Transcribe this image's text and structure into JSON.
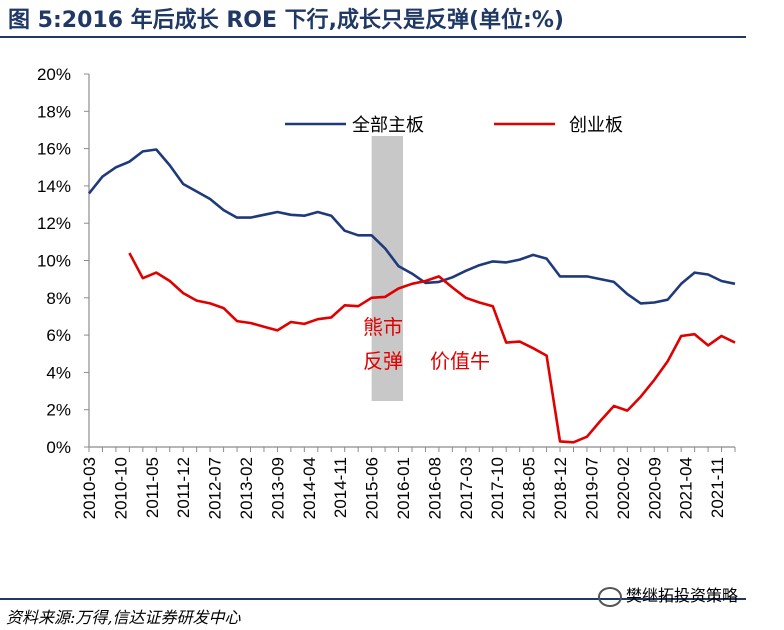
{
  "header": {
    "title": "图 5:2016 年后成长 ROE 下行,成长只是反弹(单位:%)"
  },
  "footer": {
    "source": "资料来源:万得,信达证券研发中心",
    "watermark": "樊继拓投资策略"
  },
  "chart_data": {
    "type": "line",
    "title": "图 5:2016 年后成长 ROE 下行,成长只是反弹(单位:%)",
    "xlabel": "",
    "ylabel": "",
    "ylim": [
      0,
      20
    ],
    "yticks": [
      "0%",
      "2%",
      "4%",
      "6%",
      "8%",
      "10%",
      "12%",
      "14%",
      "16%",
      "18%",
      "20%"
    ],
    "xticks": [
      "2010-03",
      "2010-10",
      "2011-05",
      "2011-12",
      "2012-07",
      "2013-02",
      "2013-09",
      "2014-04",
      "2014-11",
      "2015-06",
      "2016-01",
      "2016-08",
      "2017-03",
      "2017-10",
      "2018-05",
      "2018-12",
      "2019-07",
      "2020-02",
      "2020-09",
      "2021-04",
      "2021-11"
    ],
    "x": [
      "2010-03",
      "2010-06",
      "2010-09",
      "2010-12",
      "2011-03",
      "2011-06",
      "2011-09",
      "2011-12",
      "2012-03",
      "2012-06",
      "2012-09",
      "2012-12",
      "2013-03",
      "2013-06",
      "2013-09",
      "2013-12",
      "2014-03",
      "2014-06",
      "2014-09",
      "2014-12",
      "2015-03",
      "2015-06",
      "2015-09",
      "2015-12",
      "2016-03",
      "2016-06",
      "2016-09",
      "2016-12",
      "2017-03",
      "2017-06",
      "2017-09",
      "2017-12",
      "2018-03",
      "2018-06",
      "2018-09",
      "2018-12",
      "2019-03",
      "2019-06",
      "2019-09",
      "2019-12",
      "2020-03",
      "2020-06",
      "2020-09",
      "2020-12",
      "2021-03",
      "2021-06",
      "2021-09",
      "2021-12",
      "2022-03"
    ],
    "series": [
      {
        "name": "全部主板",
        "color": "#1f3a7a",
        "values": [
          13.6,
          14.5,
          15.0,
          15.3,
          15.85,
          15.95,
          15.1,
          14.1,
          13.7,
          13.3,
          12.7,
          12.3,
          12.3,
          12.45,
          12.6,
          12.45,
          12.4,
          12.6,
          12.4,
          11.6,
          11.35,
          11.35,
          10.65,
          9.7,
          9.3,
          8.8,
          8.85,
          9.1,
          9.45,
          9.75,
          9.95,
          9.9,
          10.05,
          10.3,
          10.1,
          9.15,
          9.15,
          9.15,
          9.0,
          8.85,
          8.2,
          7.7,
          7.75,
          7.9,
          8.75,
          9.35,
          9.25,
          8.9,
          8.75
        ]
      },
      {
        "name": "创业板",
        "color": "#e00000",
        "values": [
          null,
          null,
          null,
          10.4,
          9.05,
          9.35,
          8.9,
          8.25,
          7.85,
          7.7,
          7.45,
          6.75,
          6.65,
          6.45,
          6.25,
          6.7,
          6.6,
          6.85,
          6.95,
          7.6,
          7.55,
          8.0,
          8.05,
          8.5,
          8.75,
          8.9,
          9.15,
          8.55,
          8.0,
          7.75,
          7.55,
          5.6,
          5.65,
          5.3,
          4.9,
          0.3,
          0.25,
          0.55,
          1.4,
          2.2,
          1.95,
          2.7,
          3.6,
          4.6,
          5.95,
          6.05,
          5.45,
          5.95,
          5.6
        ]
      }
    ],
    "shaded_band": {
      "x_start": "2015-06",
      "x_end": "2016-01",
      "color": "#c8c8c8"
    },
    "annotations": [
      "熊市",
      "反弹",
      "价值牛"
    ],
    "grid": false,
    "legend_position": "top-right"
  }
}
